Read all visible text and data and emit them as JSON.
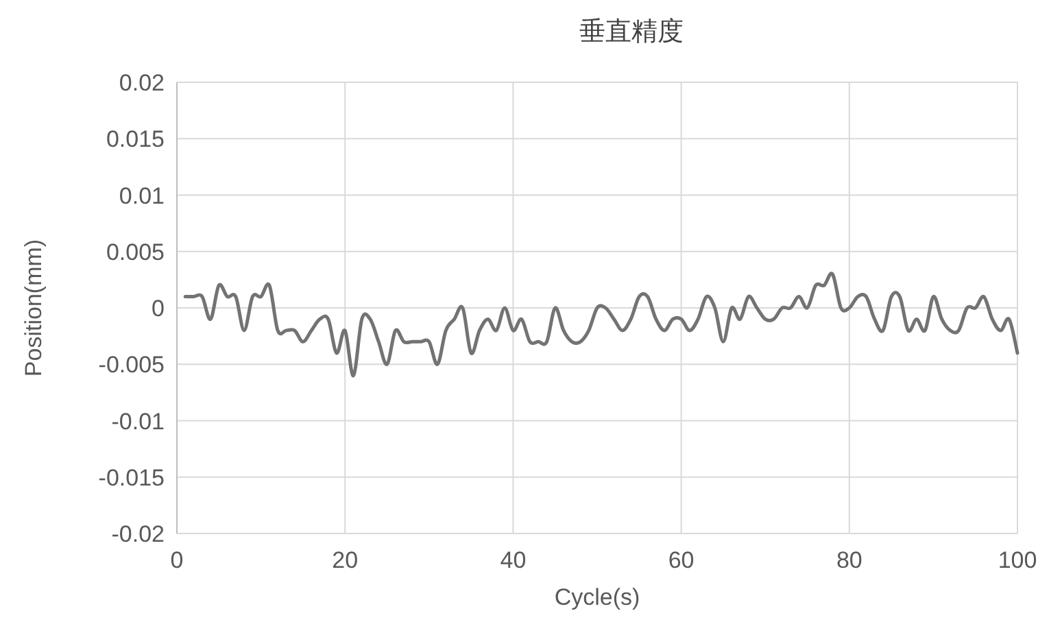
{
  "chart_data": {
    "type": "line",
    "title": "垂直精度",
    "xlabel": "Cycle(s)",
    "ylabel": "Position(mm)",
    "x": [
      1,
      2,
      3,
      4,
      5,
      6,
      7,
      8,
      9,
      10,
      11,
      12,
      13,
      14,
      15,
      16,
      17,
      18,
      19,
      20,
      21,
      22,
      23,
      24,
      25,
      26,
      27,
      28,
      29,
      30,
      31,
      32,
      33,
      34,
      35,
      36,
      37,
      38,
      39,
      40,
      41,
      42,
      43,
      44,
      45,
      46,
      47,
      48,
      49,
      50,
      51,
      52,
      53,
      54,
      55,
      56,
      57,
      58,
      59,
      60,
      61,
      62,
      63,
      64,
      65,
      66,
      67,
      68,
      69,
      70,
      71,
      72,
      73,
      74,
      75,
      76,
      77,
      78,
      79,
      80,
      81,
      82,
      83,
      84,
      85,
      86,
      87,
      88,
      89,
      90,
      91,
      92,
      93,
      94,
      95,
      96,
      97,
      98,
      99,
      100
    ],
    "series": [
      {
        "color": "#737373",
        "values": [
          0.001,
          0.001,
          0.001,
          -0.001,
          0.002,
          0.001,
          0.001,
          -0.002,
          0.001,
          0.001,
          0.002,
          -0.002,
          -0.002,
          -0.002,
          -0.003,
          -0.002,
          -0.001,
          -0.001,
          -0.004,
          -0.002,
          -0.006,
          -0.001,
          -0.001,
          -0.003,
          -0.005,
          -0.002,
          -0.003,
          -0.003,
          -0.003,
          -0.003,
          -0.005,
          -0.002,
          -0.001,
          0,
          -0.004,
          -0.002,
          -0.001,
          -0.002,
          0,
          -0.002,
          -0.001,
          -0.003,
          -0.003,
          -0.003,
          0,
          -0.002,
          -0.003,
          -0.003,
          -0.002,
          0,
          0,
          -0.001,
          -0.002,
          -0.001,
          0.001,
          0.001,
          -0.001,
          -0.002,
          -0.001,
          -0.001,
          -0.002,
          -0.001,
          0.001,
          0,
          -0.003,
          0,
          -0.001,
          0.001,
          0,
          -0.001,
          -0.001,
          0,
          0,
          0.001,
          0,
          0.002,
          0.002,
          0.003,
          0,
          0,
          0.001,
          0.001,
          -0.001,
          -0.002,
          0.001,
          0.001,
          -0.002,
          -0.001,
          -0.002,
          0.001,
          -0.001,
          -0.002,
          -0.002,
          0,
          0,
          0.001,
          -0.001,
          -0.002,
          -0.001,
          -0.004
        ]
      }
    ],
    "xlim": [
      0,
      100
    ],
    "xticks": [
      0,
      20,
      40,
      60,
      80,
      100
    ],
    "ylim": [
      -0.02,
      0.02
    ],
    "yticks": [
      {
        "value": -0.02,
        "label": "-0.02"
      },
      {
        "value": -0.015,
        "label": "-0.015"
      },
      {
        "value": -0.01,
        "label": "-0.01"
      },
      {
        "value": -0.005,
        "label": "-0.005"
      },
      0,
      0.005,
      0.01,
      0.015,
      0.02
    ],
    "grid": true,
    "marker": "none",
    "line_style": "solid"
  }
}
